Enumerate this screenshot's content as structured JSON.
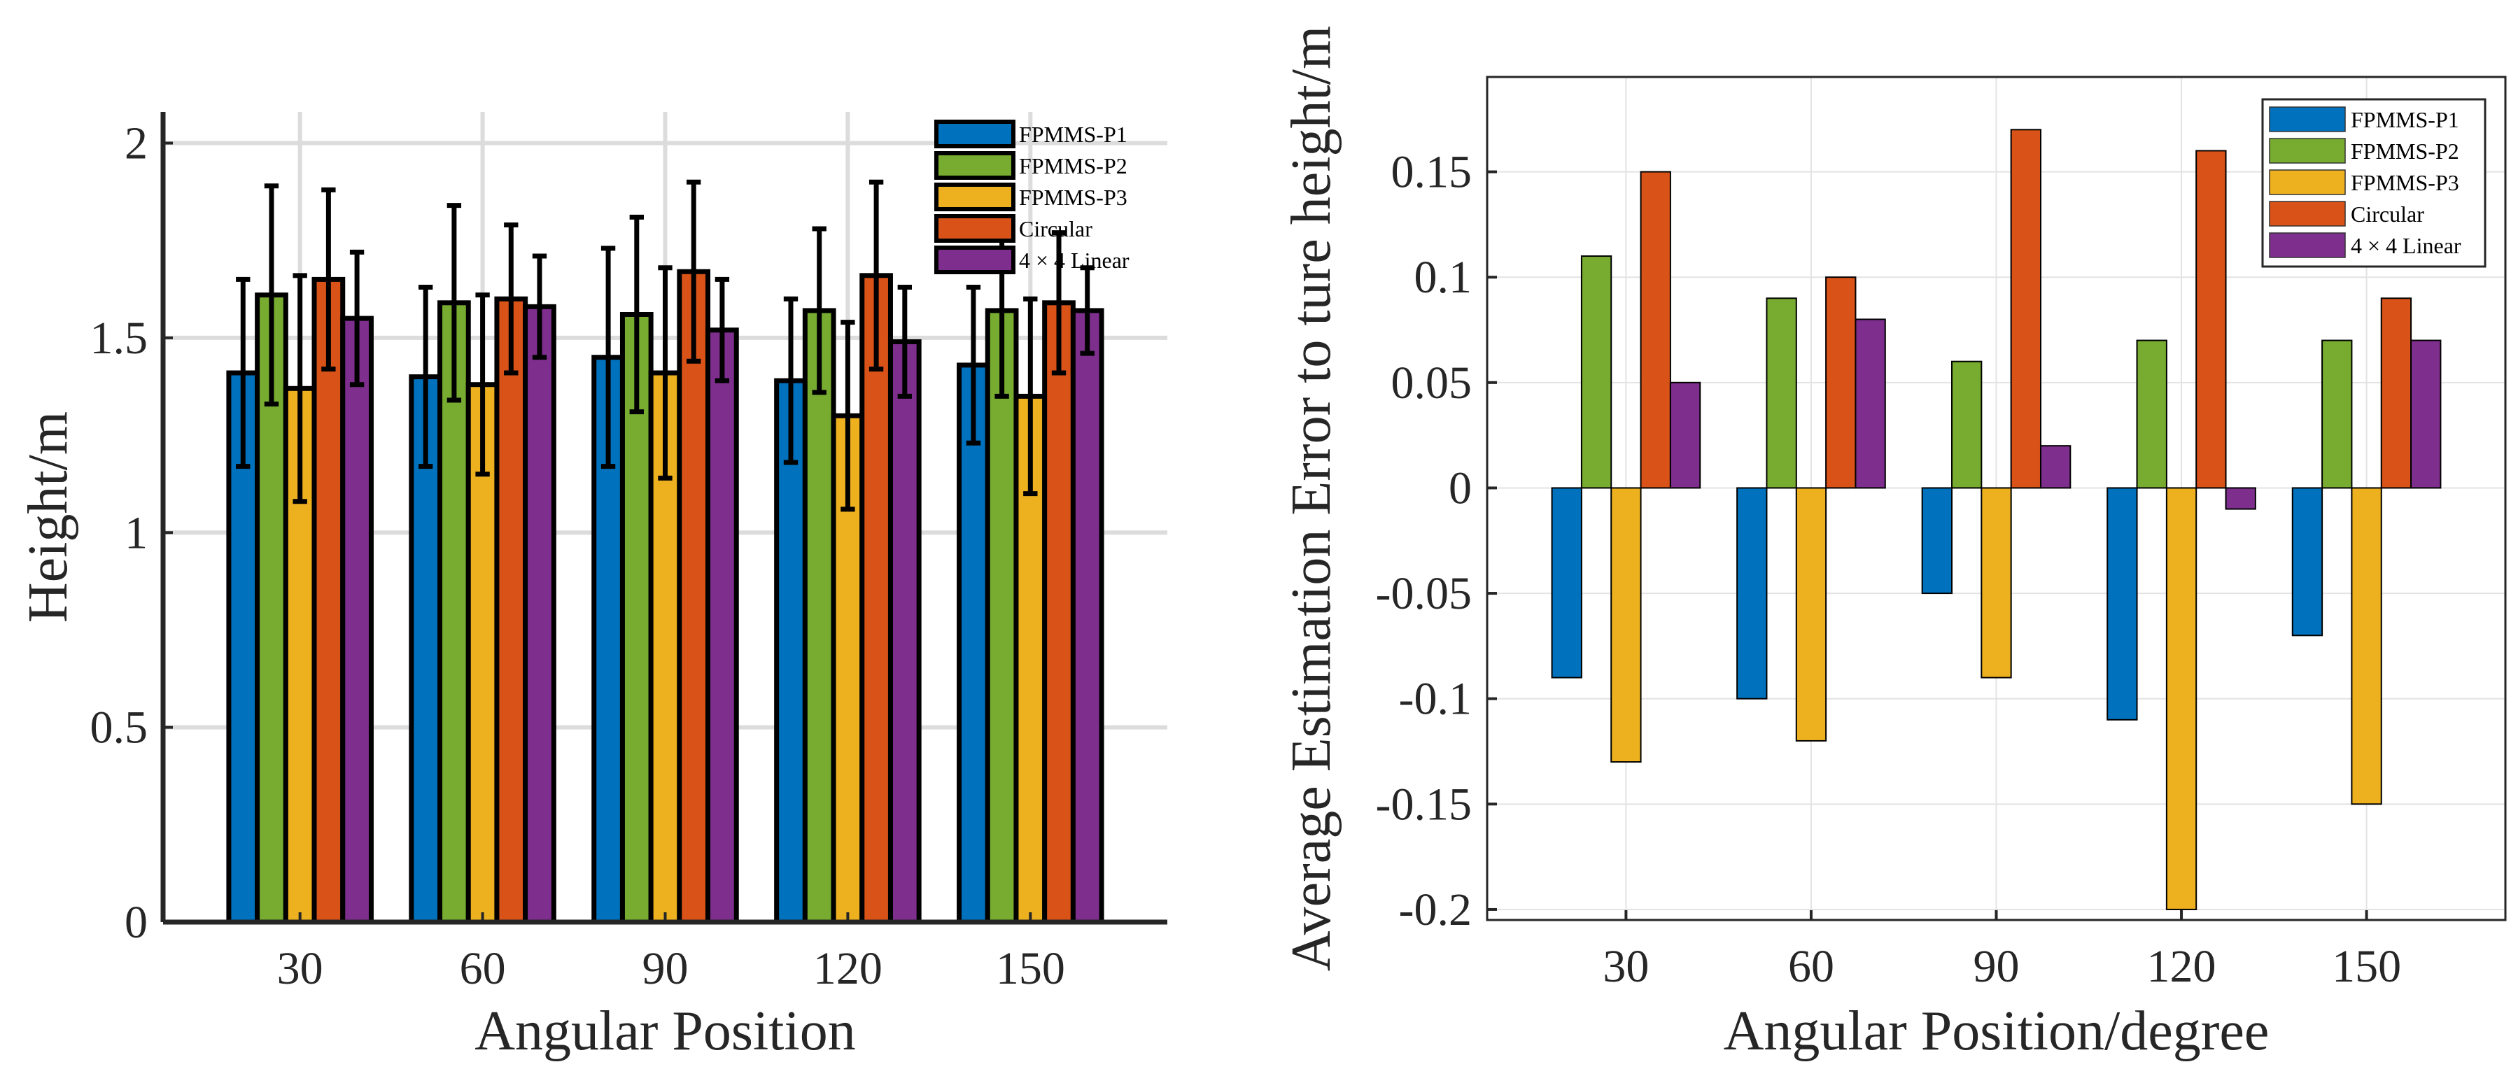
{
  "chart_data": [
    {
      "type": "bar",
      "title": "",
      "xlabel": "Angular Position",
      "ylabel": "Height/m",
      "categories": [
        "30",
        "60",
        "90",
        "120",
        "150"
      ],
      "yticks": [
        "0",
        "0.5",
        "1",
        "1.5",
        "2"
      ],
      "ylim": [
        0,
        2.08
      ],
      "grid": true,
      "legend_position": "top-right",
      "error_bars": true,
      "series": [
        {
          "name": "FPMMS-P1",
          "color": "#0072BD",
          "values": [
            1.41,
            1.4,
            1.45,
            1.39,
            1.43
          ],
          "err": [
            0.24,
            0.23,
            0.28,
            0.21,
            0.2
          ]
        },
        {
          "name": "FPMMS-P2",
          "color": "#77AC30",
          "values": [
            1.61,
            1.59,
            1.56,
            1.57,
            1.57
          ],
          "err": [
            0.28,
            0.25,
            0.25,
            0.21,
            0.22
          ]
        },
        {
          "name": "FPMMS-P3",
          "color": "#EDB120",
          "values": [
            1.37,
            1.38,
            1.41,
            1.3,
            1.35
          ],
          "err": [
            0.29,
            0.23,
            0.27,
            0.24,
            0.25
          ]
        },
        {
          "name": "Circular",
          "color": "#D95319",
          "values": [
            1.65,
            1.6,
            1.67,
            1.66,
            1.59
          ],
          "err": [
            0.23,
            0.19,
            0.23,
            0.24,
            0.18
          ]
        },
        {
          "name": "4 × 4 Linear",
          "color": "#7E2F8E",
          "values": [
            1.55,
            1.58,
            1.52,
            1.49,
            1.57
          ],
          "err": [
            0.17,
            0.13,
            0.13,
            0.14,
            0.11
          ]
        }
      ]
    },
    {
      "type": "bar",
      "title": "",
      "xlabel": "Angular Position/degree",
      "ylabel": "Average Estimation Error to ture height/m",
      "categories": [
        "30",
        "60",
        "90",
        "120",
        "150"
      ],
      "yticks": [
        "-0.2",
        "-0.15",
        "-0.1",
        "-0.05",
        "0",
        "0.05",
        "0.1",
        "0.15"
      ],
      "ylim": [
        -0.205,
        0.195
      ],
      "grid": true,
      "legend_position": "top-right",
      "series": [
        {
          "name": "FPMMS-P1",
          "color": "#0072BD",
          "values": [
            -0.09,
            -0.1,
            -0.05,
            -0.11,
            -0.07
          ]
        },
        {
          "name": "FPMMS-P2",
          "color": "#77AC30",
          "values": [
            0.11,
            0.09,
            0.06,
            0.07,
            0.07
          ]
        },
        {
          "name": "FPMMS-P3",
          "color": "#EDB120",
          "values": [
            -0.13,
            -0.12,
            -0.09,
            -0.2,
            -0.15
          ]
        },
        {
          "name": "Circular",
          "color": "#D95319",
          "values": [
            0.15,
            0.1,
            0.17,
            0.16,
            0.09
          ]
        },
        {
          "name": "4 × 4 Linear",
          "color": "#7E2F8E",
          "values": [
            0.05,
            0.08,
            0.02,
            -0.01,
            0.07
          ]
        }
      ]
    }
  ]
}
